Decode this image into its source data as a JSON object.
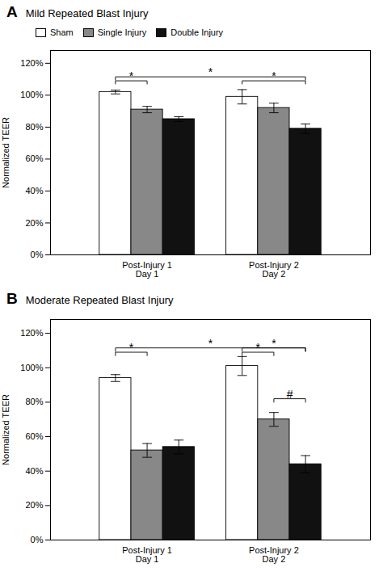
{
  "chart_data": [
    {
      "type": "bar",
      "panel_label": "A",
      "title": "Mild Repeated Blast Injury",
      "categories": [
        "Post-Injury 1\nDay 1",
        "Post-Injury 2\nDay 2"
      ],
      "series": [
        {
          "name": "Sham",
          "color": "white",
          "values": [
            1.02,
            0.99
          ],
          "errors": [
            0.012,
            0.045
          ]
        },
        {
          "name": "Single Injury",
          "color": "#888888",
          "values": [
            0.91,
            0.92
          ],
          "errors": [
            0.02,
            0.03
          ]
        },
        {
          "name": "Double Injury",
          "color": "#111111",
          "values": [
            0.85,
            0.79
          ],
          "errors": [
            0.015,
            0.03
          ]
        }
      ],
      "annotations": [
        {
          "text": "*",
          "y": 1.09,
          "start": {
            "category": "Post-Injury 1\nDay 1",
            "series": "Sham"
          },
          "end": {
            "category": "Post-Injury 1\nDay 1",
            "series": "Single Injury"
          }
        },
        {
          "text": "*",
          "y": 1.115,
          "start": {
            "category": "Post-Injury 1\nDay 1",
            "series": "Sham"
          },
          "end": {
            "category": "Post-Injury 2\nDay 2",
            "series": "Double Injury"
          }
        },
        {
          "text": "*",
          "y": 1.09,
          "start": {
            "category": "Post-Injury 2\nDay 2",
            "series": "Sham"
          },
          "end": {
            "category": "Post-Injury 2\nDay 2",
            "series": "Double Injury"
          }
        }
      ],
      "ylabel": "Normalized TEER",
      "ylim": [
        0,
        1.28
      ],
      "yticks": [
        {
          "value": 0,
          "label": "0%"
        },
        {
          "value": 0.2,
          "label": "20%"
        },
        {
          "value": 0.4,
          "label": "40%"
        },
        {
          "value": 0.6,
          "label": "60%"
        },
        {
          "value": 0.8,
          "label": "80%"
        },
        {
          "value": 1.0,
          "label": "100%"
        },
        {
          "value": 1.2,
          "label": "120%"
        }
      ],
      "grid": false,
      "legend": "upper left"
    },
    {
      "type": "bar",
      "panel_label": "B",
      "title": "Moderate Repeated Blast Injury",
      "categories": [
        "Post-Injury 1\nDay 1",
        "Post-Injury 2\nDay 2"
      ],
      "series": [
        {
          "name": "Sham",
          "color": "white",
          "values": [
            0.94,
            1.01
          ],
          "errors": [
            0.02,
            0.055
          ]
        },
        {
          "name": "Single Injury",
          "color": "#888888",
          "values": [
            0.52,
            0.7
          ],
          "errors": [
            0.04,
            0.04
          ]
        },
        {
          "name": "Double Injury",
          "color": "#111111",
          "values": [
            0.54,
            0.44
          ],
          "errors": [
            0.04,
            0.05
          ]
        }
      ],
      "annotations": [
        {
          "text": "*",
          "y": 1.09,
          "start": {
            "category": "Post-Injury 1\nDay 1",
            "series": "Sham"
          },
          "end": {
            "category": "Post-Injury 1\nDay 1",
            "series": "Single Injury"
          }
        },
        {
          "text": "*",
          "y": 1.115,
          "start": {
            "category": "Post-Injury 1\nDay 1",
            "series": "Sham"
          },
          "end": {
            "category": "Post-Injury 2\nDay 2",
            "series": "Double Injury"
          }
        },
        {
          "text": "*",
          "y": 1.09,
          "start": {
            "category": "Post-Injury 2\nDay 2",
            "series": "Sham"
          },
          "end": {
            "category": "Post-Injury 2\nDay 2",
            "series": "Single Injury"
          }
        },
        {
          "text": "*",
          "y": 1.115,
          "start": {
            "category": "Post-Injury 2\nDay 2",
            "series": "Sham"
          },
          "end": {
            "category": "Post-Injury 2\nDay 2",
            "series": "Double Injury"
          }
        },
        {
          "text": "#",
          "y": 0.82,
          "start": {
            "category": "Post-Injury 2\nDay 2",
            "series": "Single Injury"
          },
          "end": {
            "category": "Post-Injury 2\nDay 2",
            "series": "Double Injury"
          }
        }
      ],
      "ylabel": "Normalized TEER",
      "ylim": [
        0,
        1.28
      ],
      "yticks": [
        {
          "value": 0,
          "label": "0%"
        },
        {
          "value": 0.2,
          "label": "20%"
        },
        {
          "value": 0.4,
          "label": "40%"
        },
        {
          "value": 0.6,
          "label": "60%"
        },
        {
          "value": 0.8,
          "label": "80%"
        },
        {
          "value": 1.0,
          "label": "100%"
        },
        {
          "value": 1.2,
          "label": "120%"
        }
      ],
      "grid": false
    }
  ]
}
